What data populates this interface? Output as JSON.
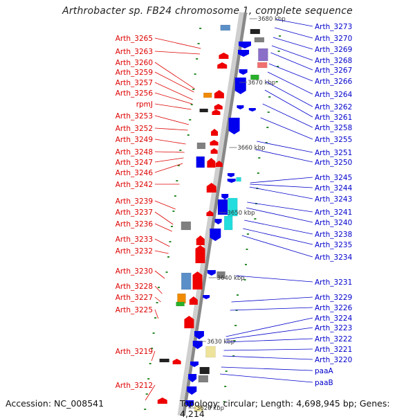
{
  "title": "Arthrobacter sp. FB24 chromosome 1, complete sequence",
  "accession": "Accession: NC_008541",
  "topology_info": "Topology: circular; Length: 4,698,945 bp; Genes: 4,214",
  "colors": {
    "left_label": "#dd0000",
    "right_label": "#0000cc",
    "backbone": "#888888",
    "tick_green": "#2a8a2a"
  },
  "scale_labels": [
    "3680 kbp",
    "3670 kbp",
    "3660 kbp",
    "3650 kbp",
    "3640 kbp",
    "3630 kbp",
    "3620 kbp"
  ],
  "left_genes": [
    "Arth_3265",
    "Arth_3263",
    "Arth_3260",
    "Arth_3259",
    "Arth_3257",
    "Arth_3256",
    "rpmJ",
    "Arth_3253",
    "Arth_3252",
    "Arth_3249",
    "Arth_3248",
    "Arth_3247",
    "Arth_3246",
    "Arth_3242",
    "Arth_3239",
    "Arth_3237",
    "Arth_3236",
    "Arth_3233",
    "Arth_3232",
    "Arth_3230",
    "Arth_3228",
    "Arth_3227",
    "Arth_3225",
    "Arth_3219",
    "Arth_3212"
  ],
  "right_genes": [
    "Arth_3273",
    "Arth_3270",
    "Arth_3269",
    "Arth_3268",
    "Arth_3267",
    "Arth_3266",
    "Arth_3264",
    "Arth_3262",
    "Arth_3261",
    "Arth_3258",
    "Arth_3255",
    "Arth_3251",
    "Arth_3250",
    "Arth_3245",
    "Arth_3244",
    "Arth_3243",
    "Arth_3241",
    "Arth_3240",
    "Arth_3238",
    "Arth_3235",
    "Arth_3234",
    "Arth_3231",
    "Arth_3229",
    "Arth_3226",
    "Arth_3224",
    "Arth_3223",
    "Arth_3222",
    "Arth_3221",
    "Arth_3220",
    "paaA",
    "paaB"
  ]
}
